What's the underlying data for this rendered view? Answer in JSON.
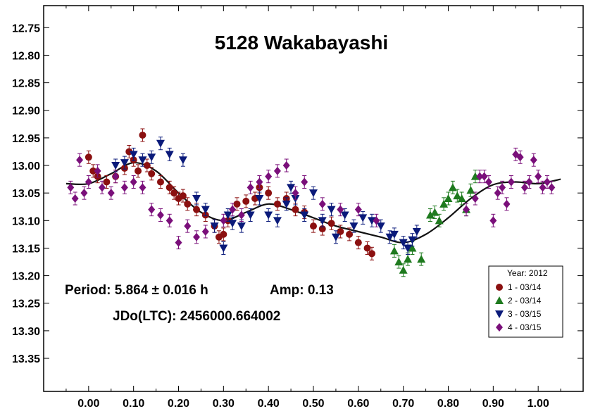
{
  "chart_data": {
    "type": "scatter",
    "title": "5128 Wakabayashi",
    "xlabel": "",
    "ylabel": "",
    "xlim": [
      -0.1,
      1.1
    ],
    "ylim": [
      12.71,
      13.41
    ],
    "y_inverted": true,
    "grid": false,
    "x_ticks": [
      "0.00",
      "0.10",
      "0.20",
      "0.30",
      "0.40",
      "0.50",
      "0.60",
      "0.70",
      "0.80",
      "0.90",
      "1.00"
    ],
    "y_ticks": [
      "12.75",
      "12.80",
      "12.85",
      "12.90",
      "12.95",
      "13.00",
      "13.05",
      "13.10",
      "13.15",
      "13.20",
      "13.25",
      "13.30",
      "13.35"
    ],
    "annotations": {
      "period": "Period: 5.864 ± 0.016 h",
      "amp": "Amp: 0.13",
      "epoch": "JDo(LTC): 2456000.664002"
    },
    "legend": {
      "position": "bottom-right",
      "title": "Year: 2012",
      "entries": [
        "1 - 03/14",
        "2 - 03/14",
        "3 - 03/15",
        "4 - 03/15"
      ]
    },
    "fit_curve": {
      "x": [
        -0.05,
        0.0,
        0.05,
        0.1,
        0.15,
        0.2,
        0.25,
        0.3,
        0.35,
        0.4,
        0.45,
        0.5,
        0.55,
        0.6,
        0.65,
        0.7,
        0.75,
        0.8,
        0.85,
        0.9,
        0.95,
        1.0,
        1.05
      ],
      "y": [
        13.033,
        13.033,
        13.015,
        12.995,
        13.01,
        13.05,
        13.085,
        13.1,
        13.085,
        13.07,
        13.08,
        13.095,
        13.11,
        13.12,
        13.13,
        13.14,
        13.125,
        13.095,
        13.06,
        13.035,
        13.03,
        13.033,
        13.025
      ]
    },
    "series": [
      {
        "name": "1 - 03/14",
        "color": "#8b1010",
        "marker": "circle",
        "x": [
          0.0,
          0.01,
          0.02,
          0.04,
          0.06,
          0.08,
          0.09,
          0.1,
          0.11,
          0.12,
          0.13,
          0.14,
          0.16,
          0.18,
          0.19,
          0.2,
          0.21,
          0.22,
          0.24,
          0.26,
          0.28,
          0.29,
          0.3,
          0.31,
          0.33,
          0.35,
          0.37,
          0.38,
          0.4,
          0.42,
          0.44,
          0.46,
          0.48,
          0.5,
          0.52,
          0.54,
          0.56,
          0.58,
          0.6,
          0.62,
          0.63
        ],
        "y": [
          12.985,
          13.01,
          13.02,
          13.03,
          13.02,
          13.005,
          12.975,
          12.99,
          13.01,
          12.945,
          13.0,
          13.015,
          13.03,
          13.04,
          13.05,
          13.06,
          13.055,
          13.07,
          13.08,
          13.09,
          13.11,
          13.13,
          13.125,
          13.1,
          13.07,
          13.065,
          13.06,
          13.04,
          13.05,
          13.07,
          13.06,
          13.08,
          13.085,
          13.11,
          13.115,
          13.105,
          13.12,
          13.125,
          13.14,
          13.15,
          13.16
        ]
      },
      {
        "name": "2 - 03/14",
        "color": "#1e7a1e",
        "marker": "triangle-up",
        "x": [
          0.68,
          0.69,
          0.7,
          0.71,
          0.72,
          0.74,
          0.76,
          0.77,
          0.78,
          0.79,
          0.8,
          0.81,
          0.82,
          0.83,
          0.84,
          0.85,
          0.86
        ],
        "y": [
          13.155,
          13.175,
          13.19,
          13.17,
          13.15,
          13.17,
          13.09,
          13.085,
          13.1,
          13.07,
          13.06,
          13.04,
          13.055,
          13.06,
          13.08,
          13.045,
          13.02
        ]
      },
      {
        "name": "3 - 03/15",
        "color": "#0a1a7a",
        "marker": "triangle-down",
        "x": [
          0.06,
          0.08,
          0.1,
          0.12,
          0.14,
          0.16,
          0.18,
          0.21,
          0.24,
          0.26,
          0.28,
          0.3,
          0.31,
          0.32,
          0.34,
          0.36,
          0.38,
          0.4,
          0.42,
          0.44,
          0.45,
          0.46,
          0.48,
          0.5,
          0.52,
          0.54,
          0.55,
          0.57,
          0.59,
          0.61,
          0.63,
          0.65,
          0.67,
          0.68,
          0.7,
          0.71,
          0.72,
          0.73
        ],
        "y": [
          13.0,
          12.995,
          12.98,
          12.99,
          12.985,
          12.96,
          12.98,
          12.99,
          13.06,
          13.08,
          13.11,
          13.15,
          13.09,
          13.105,
          13.11,
          13.09,
          13.06,
          13.09,
          13.1,
          13.07,
          13.04,
          13.06,
          13.09,
          13.05,
          13.1,
          13.08,
          13.13,
          13.09,
          13.11,
          13.095,
          13.1,
          13.11,
          13.13,
          13.125,
          13.14,
          13.15,
          13.135,
          13.12
        ]
      },
      {
        "name": "4 - 03/15",
        "color": "#7a0f7a",
        "marker": "diamond",
        "x": [
          -0.04,
          -0.03,
          -0.02,
          -0.01,
          0.0,
          0.02,
          0.03,
          0.05,
          0.06,
          0.08,
          0.1,
          0.12,
          0.14,
          0.16,
          0.18,
          0.2,
          0.22,
          0.24,
          0.26,
          0.3,
          0.32,
          0.34,
          0.36,
          0.38,
          0.4,
          0.42,
          0.44,
          0.46,
          0.48,
          0.52,
          0.56,
          0.6,
          0.64,
          0.84,
          0.86,
          0.87,
          0.88,
          0.89,
          0.9,
          0.91,
          0.92,
          0.93,
          0.94,
          0.95,
          0.96,
          0.97,
          0.98,
          0.99,
          1.0,
          1.01,
          1.02,
          1.03
        ],
        "y": [
          13.04,
          13.06,
          12.99,
          13.05,
          13.03,
          13.01,
          13.04,
          13.05,
          13.02,
          13.04,
          13.03,
          13.04,
          13.08,
          13.09,
          13.1,
          13.14,
          13.11,
          13.13,
          13.12,
          13.1,
          13.08,
          13.09,
          13.04,
          13.03,
          13.02,
          13.01,
          13.0,
          13.05,
          13.03,
          13.07,
          13.08,
          13.08,
          13.1,
          13.08,
          13.06,
          13.02,
          13.02,
          13.03,
          13.1,
          13.05,
          13.04,
          13.07,
          13.03,
          12.98,
          12.985,
          13.04,
          13.03,
          12.99,
          13.02,
          13.04,
          13.03,
          13.04
        ]
      }
    ]
  }
}
